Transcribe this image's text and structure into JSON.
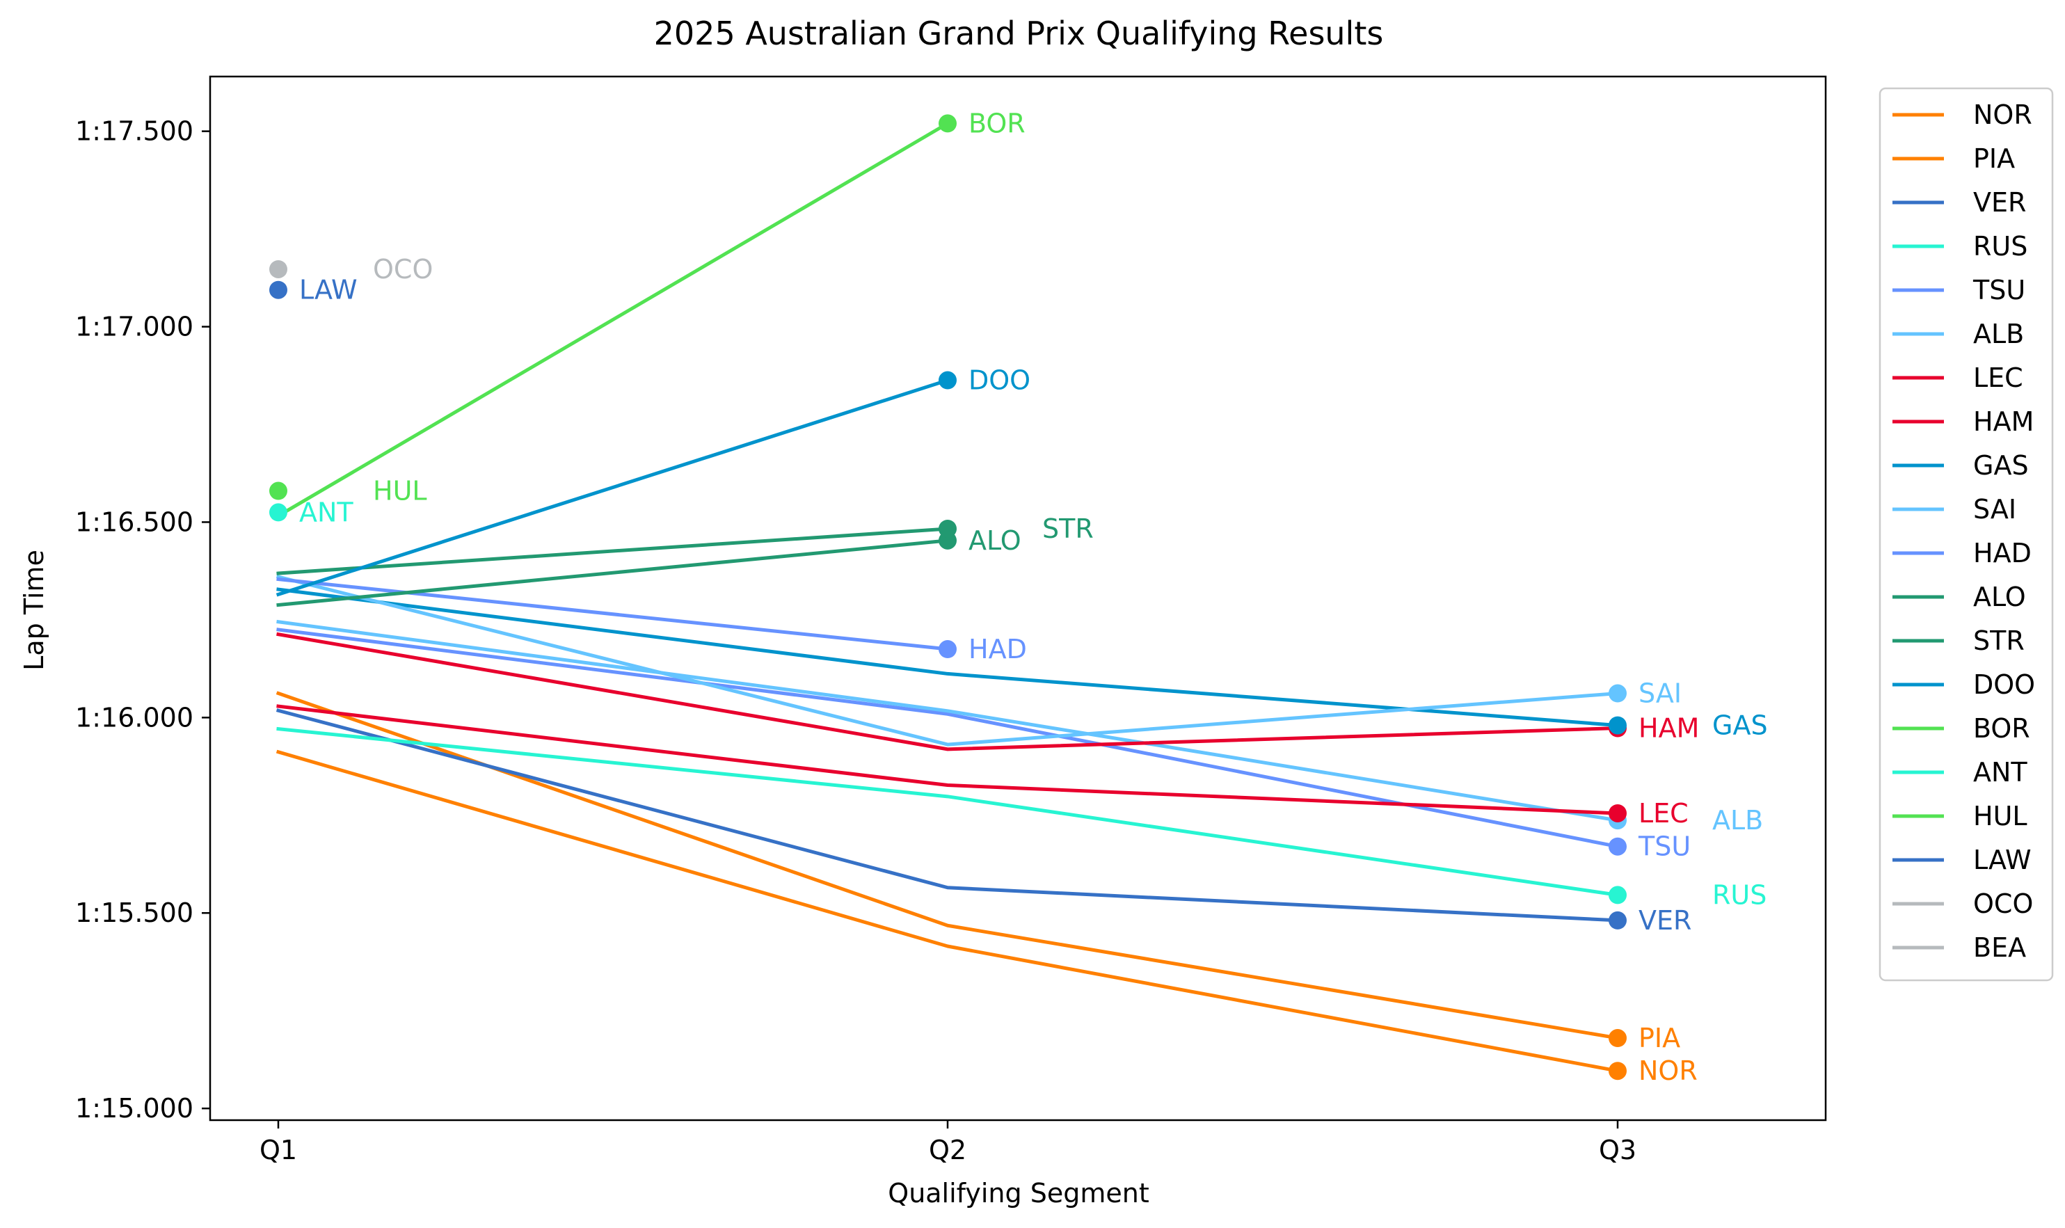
{
  "chart_data": {
    "type": "line",
    "title": "2025 Australian Grand Prix Qualifying Results",
    "xlabel": "Qualifying Segment",
    "ylabel": "Lap Time",
    "categories": [
      "Q1",
      "Q2",
      "Q3"
    ],
    "ylim": [
      74.97,
      77.64
    ],
    "yticks": [
      75.0,
      75.5,
      76.0,
      76.5,
      77.0,
      77.5
    ],
    "ytick_labels": [
      "1:15.000",
      "1:15.500",
      "1:16.000",
      "1:16.500",
      "1:17.000",
      "1:17.500"
    ],
    "grid": false,
    "legend": "right-outside",
    "series": [
      {
        "name": "NOR",
        "color": "#FF8000",
        "values": [
          75.912,
          75.415,
          75.096
        ]
      },
      {
        "name": "PIA",
        "color": "#FF8000",
        "values": [
          76.062,
          75.468,
          75.18
        ]
      },
      {
        "name": "VER",
        "color": "#3671C6",
        "values": [
          76.018,
          75.565,
          75.481
        ]
      },
      {
        "name": "RUS",
        "color": "#27F4D2",
        "values": [
          75.971,
          75.798,
          75.546
        ]
      },
      {
        "name": "TSU",
        "color": "#6692FF",
        "values": [
          76.225,
          76.009,
          75.67
        ]
      },
      {
        "name": "ALB",
        "color": "#64C4FF",
        "values": [
          76.245,
          76.017,
          75.737
        ]
      },
      {
        "name": "LEC",
        "color": "#E8002D",
        "values": [
          76.029,
          75.827,
          75.755
        ]
      },
      {
        "name": "HAM",
        "color": "#E8002D",
        "values": [
          76.213,
          75.919,
          75.973
        ]
      },
      {
        "name": "GAS",
        "color": "#0093CC",
        "values": [
          76.328,
          76.112,
          75.98
        ]
      },
      {
        "name": "SAI",
        "color": "#64C4FF",
        "values": [
          76.36,
          75.931,
          76.062
        ]
      },
      {
        "name": "HAD",
        "color": "#6692FF",
        "values": [
          76.354,
          76.175,
          null
        ]
      },
      {
        "name": "ALO",
        "color": "#229971",
        "values": [
          76.288,
          76.453,
          null
        ]
      },
      {
        "name": "STR",
        "color": "#229971",
        "values": [
          76.369,
          76.483,
          null
        ]
      },
      {
        "name": "DOO",
        "color": "#0093CC",
        "values": [
          76.315,
          76.863,
          null
        ]
      },
      {
        "name": "BOR",
        "color": "#52E252",
        "values": [
          76.516,
          77.52,
          null
        ]
      },
      {
        "name": "ANT",
        "color": "#27F4D2",
        "values": [
          76.525,
          null,
          null
        ]
      },
      {
        "name": "HUL",
        "color": "#52E252",
        "values": [
          76.58,
          null,
          null
        ]
      },
      {
        "name": "LAW",
        "color": "#3671C6",
        "values": [
          77.094,
          null,
          null
        ]
      },
      {
        "name": "OCO",
        "color": "#B6BABD",
        "values": [
          77.147,
          null,
          null
        ]
      },
      {
        "name": "BEA",
        "color": "#B6BABD",
        "values": [
          null,
          null,
          null
        ]
      }
    ],
    "annotations": [
      {
        "text": "NOR",
        "color": "#FF8000",
        "x": 2,
        "y": 75.096,
        "offset": "near"
      },
      {
        "text": "PIA",
        "color": "#FF8000",
        "x": 2,
        "y": 75.18,
        "offset": "near"
      },
      {
        "text": "VER",
        "color": "#3671C6",
        "x": 2,
        "y": 75.481,
        "offset": "near"
      },
      {
        "text": "RUS",
        "color": "#27F4D2",
        "x": 2,
        "y": 75.546,
        "offset": "far"
      },
      {
        "text": "TSU",
        "color": "#6692FF",
        "x": 2,
        "y": 75.67,
        "offset": "near"
      },
      {
        "text": "ALB",
        "color": "#64C4FF",
        "x": 2,
        "y": 75.737,
        "offset": "far"
      },
      {
        "text": "LEC",
        "color": "#E8002D",
        "x": 2,
        "y": 75.755,
        "offset": "near"
      },
      {
        "text": "HAM",
        "color": "#E8002D",
        "x": 2,
        "y": 75.973,
        "offset": "near"
      },
      {
        "text": "GAS",
        "color": "#0093CC",
        "x": 2,
        "y": 75.98,
        "offset": "far"
      },
      {
        "text": "SAI",
        "color": "#64C4FF",
        "x": 2,
        "y": 76.062,
        "offset": "near"
      },
      {
        "text": "HAD",
        "color": "#6692FF",
        "x": 1,
        "y": 76.175,
        "offset": "near"
      },
      {
        "text": "ALO",
        "color": "#229971",
        "x": 1,
        "y": 76.453,
        "offset": "near"
      },
      {
        "text": "STR",
        "color": "#229971",
        "x": 1,
        "y": 76.483,
        "offset": "far"
      },
      {
        "text": "DOO",
        "color": "#0093CC",
        "x": 1,
        "y": 76.863,
        "offset": "near"
      },
      {
        "text": "BOR",
        "color": "#52E252",
        "x": 1,
        "y": 77.52,
        "offset": "near"
      },
      {
        "text": "ANT",
        "color": "#27F4D2",
        "x": 0,
        "y": 76.525,
        "offset": "near"
      },
      {
        "text": "HUL",
        "color": "#52E252",
        "x": 0,
        "y": 76.58,
        "offset": "far"
      },
      {
        "text": "LAW",
        "color": "#3671C6",
        "x": 0,
        "y": 77.094,
        "offset": "near"
      },
      {
        "text": "OCO",
        "color": "#B6BABD",
        "x": 0,
        "y": 77.147,
        "offset": "far"
      }
    ]
  }
}
